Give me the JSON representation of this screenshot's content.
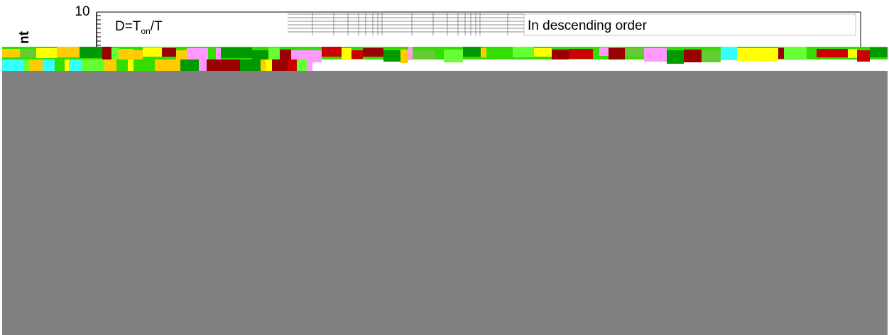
{
  "fragment": {
    "y_tick": "10",
    "axis_label_fragment": "nt",
    "formula": {
      "base": "D=T",
      "sub": "on",
      "tail": "/T"
    },
    "note": "In descending order"
  }
}
